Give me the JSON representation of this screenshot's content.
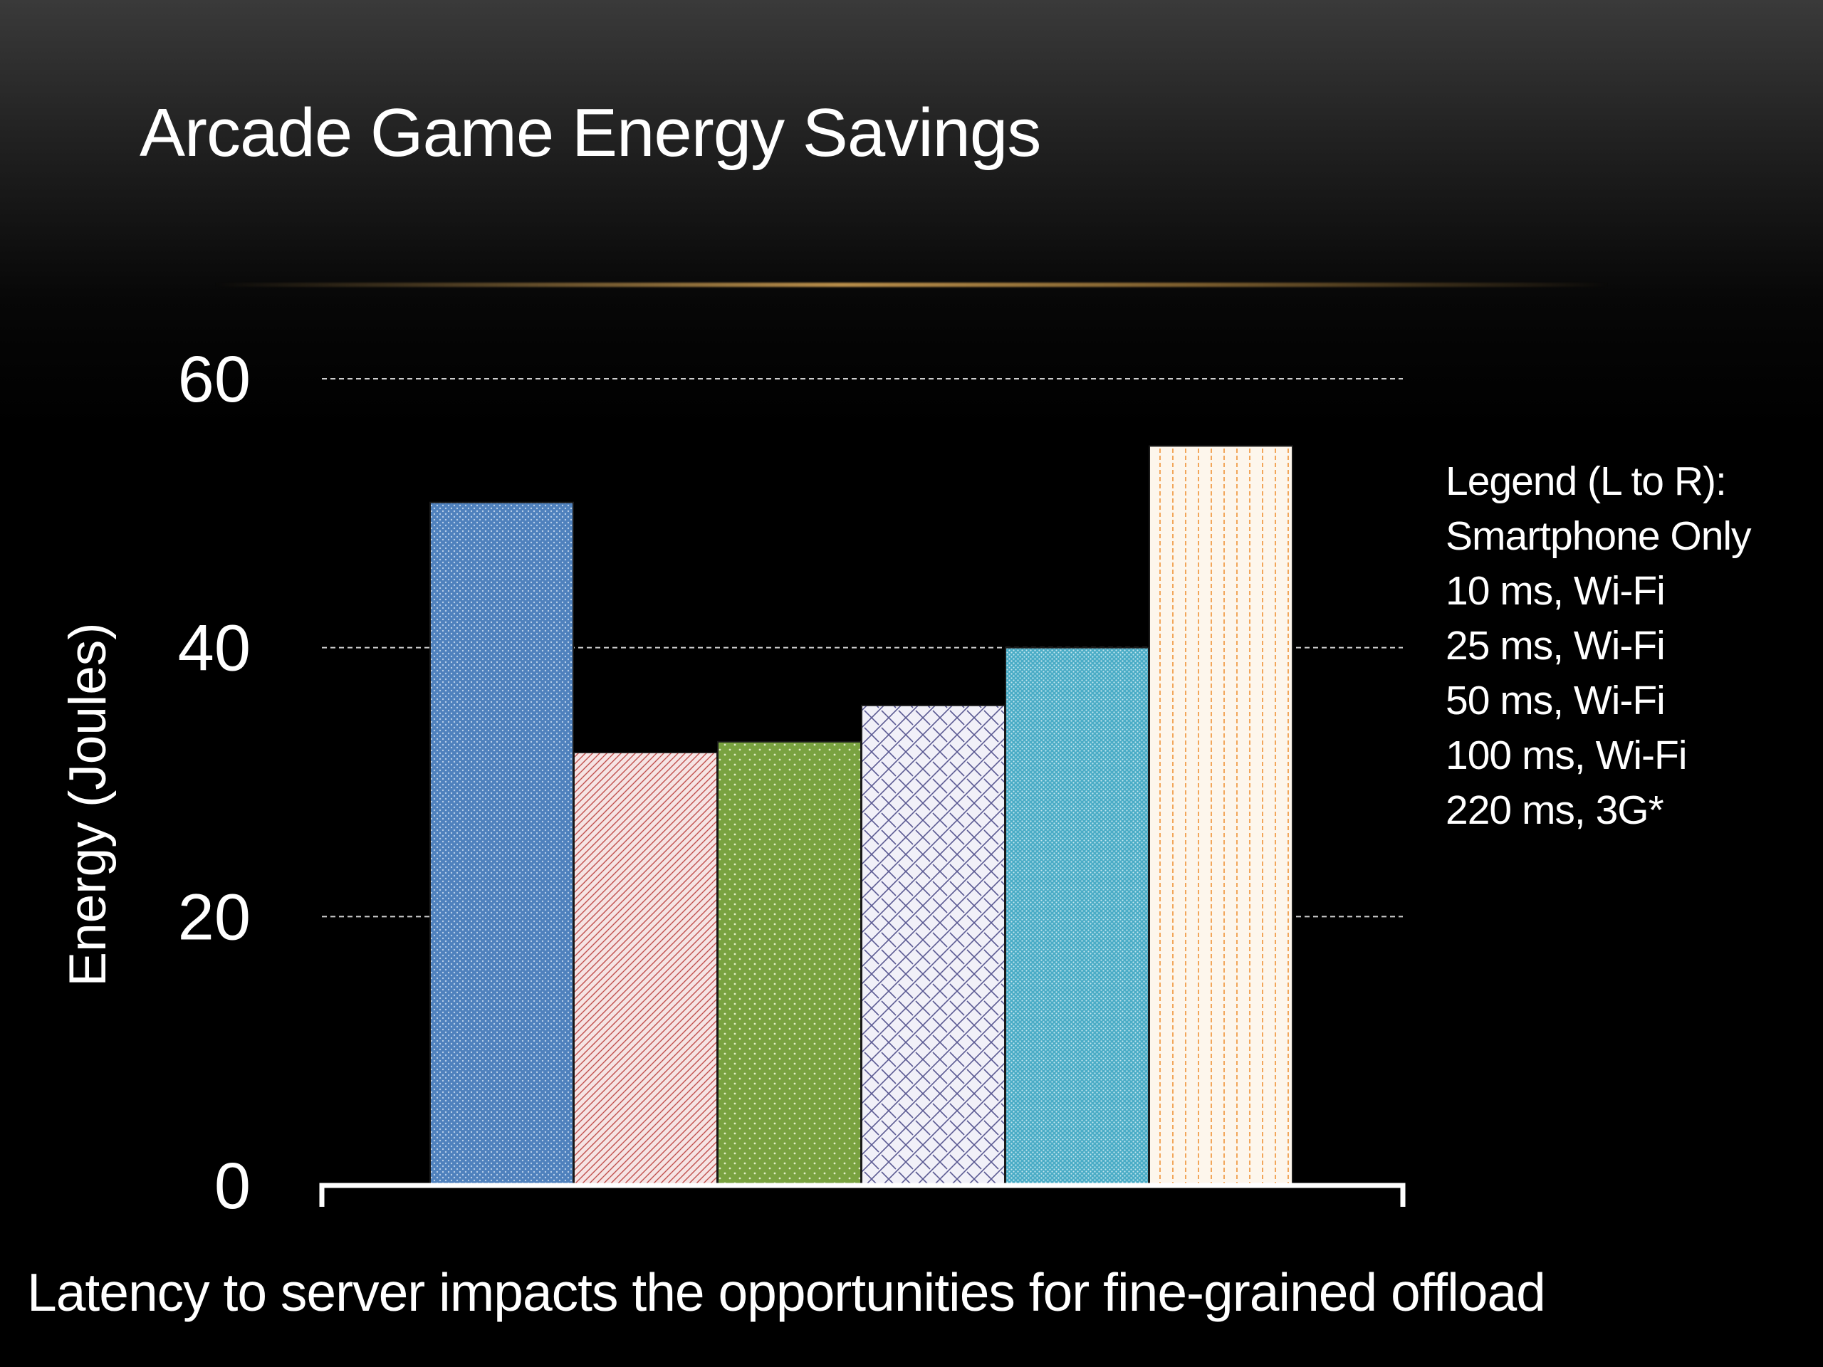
{
  "slide": {
    "title": "Arcade Game Energy Savings",
    "caption": "Latency to server impacts the opportunities for fine-grained offload"
  },
  "legend": {
    "heading": "Legend (L to R):",
    "items": [
      "Smartphone Only",
      "10 ms, Wi-Fi",
      "25 ms, Wi-Fi",
      "50 ms, Wi-Fi",
      "100 ms, Wi-Fi",
      "220 ms, 3G*"
    ]
  },
  "colors": {
    "background": "#000000",
    "title_rule": "#d4a24f",
    "gridline": "#cfcfcf",
    "axis": "#ffffff"
  },
  "chart_data": {
    "type": "bar",
    "title": "",
    "xlabel": "",
    "ylabel": "Energy (Joules)",
    "ylim": [
      0,
      60
    ],
    "yticks": [
      0,
      20,
      40,
      60
    ],
    "grid": true,
    "grid_style": "dashed",
    "legend_position": "right",
    "categories": [
      "Smartphone Only",
      "10 ms, Wi-Fi",
      "25 ms, Wi-Fi",
      "50 ms, Wi-Fi",
      "100 ms, Wi-Fi",
      "220 ms, 3G*"
    ],
    "values": [
      50.8,
      32.2,
      33.0,
      35.7,
      40.0,
      55.0
    ],
    "bar_colors": [
      "#4f81bd",
      "#f2d9d9",
      "#79a240",
      "#ecebf5",
      "#4aacc6",
      "#fdf3e6"
    ],
    "bar_patterns": [
      "fine-dots",
      "diagonal-hatch",
      "sparse-dots",
      "diagonal-weave",
      "fine-dots",
      "vertical-dotted-lines"
    ]
  }
}
